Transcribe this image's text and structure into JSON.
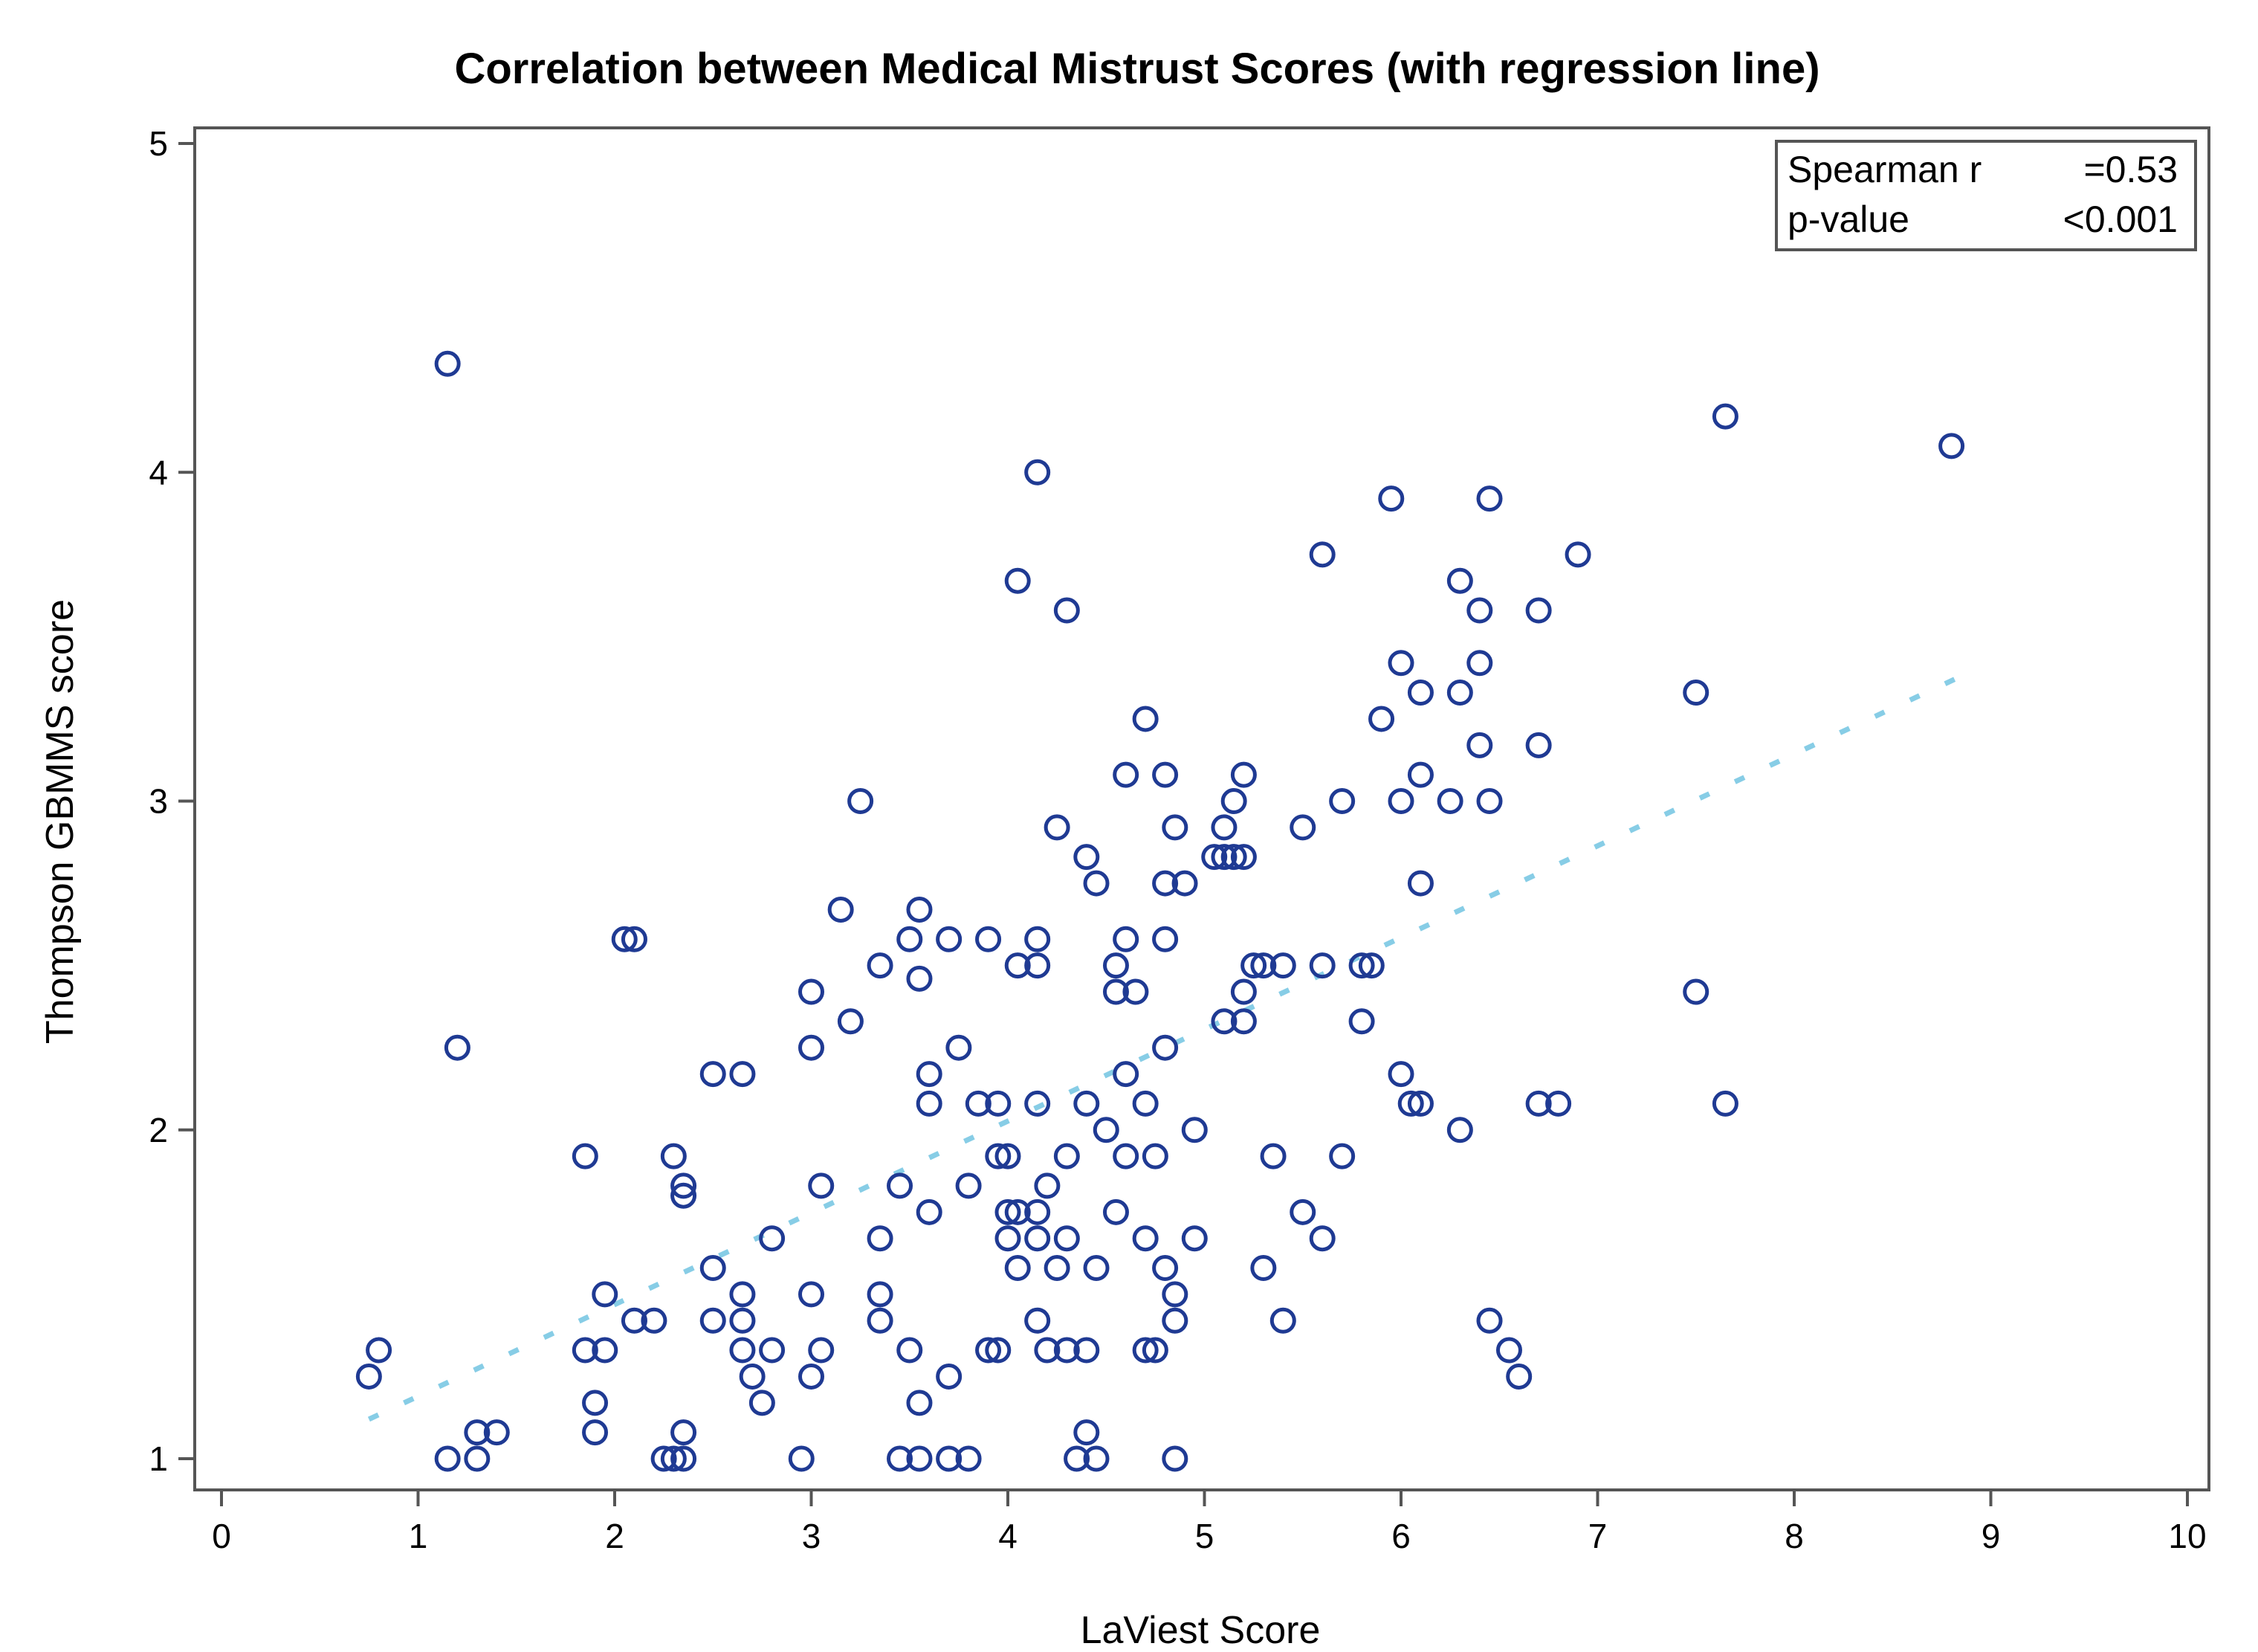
{
  "chart_data": {
    "type": "scatter",
    "title": "Correlation between Medical Mistrust Scores (with regression line)",
    "xlabel": "LaViest Score",
    "ylabel": "Thompson GBMMS score",
    "xlim": [
      0,
      10
    ],
    "ylim": [
      1,
      5
    ],
    "x_ticks": [
      "0",
      "1",
      "2",
      "3",
      "4",
      "5",
      "6",
      "7",
      "8",
      "9",
      "10"
    ],
    "y_ticks": [
      "1",
      "2",
      "3",
      "4",
      "5"
    ],
    "legend": {
      "placement": "top-right",
      "rows": [
        {
          "label": "Spearman r",
          "value": "=0.53"
        },
        {
          "label": "p-value",
          "value": "<0.001"
        }
      ]
    },
    "regression_line": {
      "x": [
        0.75,
        8.85
      ],
      "y": [
        1.12,
        3.38
      ]
    },
    "points": [
      [
        1.15,
        4.33
      ],
      [
        7.65,
        4.17
      ],
      [
        8.8,
        4.08
      ],
      [
        4.15,
        4.0
      ],
      [
        5.95,
        3.92
      ],
      [
        6.45,
        3.92
      ],
      [
        5.6,
        3.75
      ],
      [
        6.9,
        3.75
      ],
      [
        4.05,
        3.67
      ],
      [
        6.3,
        3.67
      ],
      [
        4.3,
        3.58
      ],
      [
        6.4,
        3.58
      ],
      [
        6.7,
        3.58
      ],
      [
        6.0,
        3.42
      ],
      [
        6.4,
        3.42
      ],
      [
        6.1,
        3.33
      ],
      [
        6.3,
        3.33
      ],
      [
        7.5,
        3.33
      ],
      [
        4.7,
        3.25
      ],
      [
        5.9,
        3.25
      ],
      [
        6.4,
        3.17
      ],
      [
        6.7,
        3.17
      ],
      [
        4.6,
        3.08
      ],
      [
        4.8,
        3.08
      ],
      [
        5.2,
        3.08
      ],
      [
        6.1,
        3.08
      ],
      [
        3.25,
        3.0
      ],
      [
        5.15,
        3.0
      ],
      [
        5.7,
        3.0
      ],
      [
        6.0,
        3.0
      ],
      [
        6.25,
        3.0
      ],
      [
        6.45,
        3.0
      ],
      [
        4.25,
        2.92
      ],
      [
        4.85,
        2.92
      ],
      [
        5.1,
        2.92
      ],
      [
        5.5,
        2.92
      ],
      [
        4.4,
        2.83
      ],
      [
        5.05,
        2.83
      ],
      [
        5.1,
        2.83
      ],
      [
        5.15,
        2.83
      ],
      [
        5.2,
        2.83
      ],
      [
        4.45,
        2.75
      ],
      [
        4.8,
        2.75
      ],
      [
        4.9,
        2.75
      ],
      [
        6.1,
        2.75
      ],
      [
        3.15,
        2.67
      ],
      [
        3.55,
        2.67
      ],
      [
        2.05,
        2.58
      ],
      [
        2.1,
        2.58
      ],
      [
        3.5,
        2.58
      ],
      [
        3.7,
        2.58
      ],
      [
        3.9,
        2.58
      ],
      [
        4.15,
        2.58
      ],
      [
        4.6,
        2.58
      ],
      [
        4.8,
        2.58
      ],
      [
        3.35,
        2.5
      ],
      [
        4.05,
        2.5
      ],
      [
        4.15,
        2.5
      ],
      [
        4.55,
        2.5
      ],
      [
        5.25,
        2.5
      ],
      [
        5.3,
        2.5
      ],
      [
        5.4,
        2.5
      ],
      [
        5.6,
        2.5
      ],
      [
        5.8,
        2.5
      ],
      [
        5.85,
        2.5
      ],
      [
        3.55,
        2.46
      ],
      [
        3.0,
        2.42
      ],
      [
        4.55,
        2.42
      ],
      [
        4.65,
        2.42
      ],
      [
        5.2,
        2.42
      ],
      [
        7.5,
        2.42
      ],
      [
        3.2,
        2.33
      ],
      [
        5.1,
        2.33
      ],
      [
        5.2,
        2.33
      ],
      [
        5.8,
        2.33
      ],
      [
        1.2,
        2.25
      ],
      [
        3.0,
        2.25
      ],
      [
        3.75,
        2.25
      ],
      [
        4.8,
        2.25
      ],
      [
        2.5,
        2.17
      ],
      [
        2.65,
        2.17
      ],
      [
        3.6,
        2.17
      ],
      [
        4.6,
        2.17
      ],
      [
        6.0,
        2.17
      ],
      [
        3.6,
        2.08
      ],
      [
        3.85,
        2.08
      ],
      [
        3.95,
        2.08
      ],
      [
        4.15,
        2.08
      ],
      [
        4.4,
        2.08
      ],
      [
        4.7,
        2.08
      ],
      [
        6.05,
        2.08
      ],
      [
        6.1,
        2.08
      ],
      [
        6.7,
        2.08
      ],
      [
        6.8,
        2.08
      ],
      [
        7.65,
        2.08
      ],
      [
        4.5,
        2.0
      ],
      [
        4.95,
        2.0
      ],
      [
        6.3,
        2.0
      ],
      [
        1.85,
        1.92
      ],
      [
        2.3,
        1.92
      ],
      [
        3.95,
        1.92
      ],
      [
        4.0,
        1.92
      ],
      [
        4.3,
        1.92
      ],
      [
        4.6,
        1.92
      ],
      [
        4.75,
        1.92
      ],
      [
        5.35,
        1.92
      ],
      [
        5.7,
        1.92
      ],
      [
        2.35,
        1.83
      ],
      [
        3.05,
        1.83
      ],
      [
        3.45,
        1.83
      ],
      [
        3.8,
        1.83
      ],
      [
        4.2,
        1.83
      ],
      [
        2.35,
        1.8
      ],
      [
        3.6,
        1.75
      ],
      [
        4.0,
        1.75
      ],
      [
        4.05,
        1.75
      ],
      [
        4.15,
        1.75
      ],
      [
        4.55,
        1.75
      ],
      [
        5.5,
        1.75
      ],
      [
        2.8,
        1.67
      ],
      [
        3.35,
        1.67
      ],
      [
        4.0,
        1.67
      ],
      [
        4.15,
        1.67
      ],
      [
        4.3,
        1.67
      ],
      [
        4.7,
        1.67
      ],
      [
        4.95,
        1.67
      ],
      [
        5.6,
        1.67
      ],
      [
        2.5,
        1.58
      ],
      [
        4.05,
        1.58
      ],
      [
        4.25,
        1.58
      ],
      [
        4.45,
        1.58
      ],
      [
        4.8,
        1.58
      ],
      [
        5.3,
        1.58
      ],
      [
        1.95,
        1.5
      ],
      [
        2.65,
        1.5
      ],
      [
        3.0,
        1.5
      ],
      [
        3.35,
        1.5
      ],
      [
        4.85,
        1.5
      ],
      [
        2.1,
        1.42
      ],
      [
        2.2,
        1.42
      ],
      [
        2.5,
        1.42
      ],
      [
        2.65,
        1.42
      ],
      [
        3.35,
        1.42
      ],
      [
        4.15,
        1.42
      ],
      [
        4.85,
        1.42
      ],
      [
        5.4,
        1.42
      ],
      [
        6.45,
        1.42
      ],
      [
        0.8,
        1.33
      ],
      [
        1.85,
        1.33
      ],
      [
        1.95,
        1.33
      ],
      [
        2.65,
        1.33
      ],
      [
        2.8,
        1.33
      ],
      [
        3.05,
        1.33
      ],
      [
        3.5,
        1.33
      ],
      [
        3.9,
        1.33
      ],
      [
        3.95,
        1.33
      ],
      [
        4.2,
        1.33
      ],
      [
        4.3,
        1.33
      ],
      [
        4.4,
        1.33
      ],
      [
        4.7,
        1.33
      ],
      [
        4.75,
        1.33
      ],
      [
        6.55,
        1.33
      ],
      [
        0.75,
        1.25
      ],
      [
        2.7,
        1.25
      ],
      [
        3.0,
        1.25
      ],
      [
        3.7,
        1.25
      ],
      [
        6.6,
        1.25
      ],
      [
        1.9,
        1.17
      ],
      [
        2.75,
        1.17
      ],
      [
        3.55,
        1.17
      ],
      [
        1.3,
        1.08
      ],
      [
        1.4,
        1.08
      ],
      [
        1.9,
        1.08
      ],
      [
        2.35,
        1.08
      ],
      [
        4.4,
        1.08
      ],
      [
        1.15,
        1.0
      ],
      [
        1.3,
        1.0
      ],
      [
        2.25,
        1.0
      ],
      [
        2.3,
        1.0
      ],
      [
        2.35,
        1.0
      ],
      [
        2.95,
        1.0
      ],
      [
        3.45,
        1.0
      ],
      [
        3.55,
        1.0
      ],
      [
        3.7,
        1.0
      ],
      [
        3.8,
        1.0
      ],
      [
        4.35,
        1.0
      ],
      [
        4.45,
        1.0
      ],
      [
        4.85,
        1.0
      ]
    ]
  }
}
